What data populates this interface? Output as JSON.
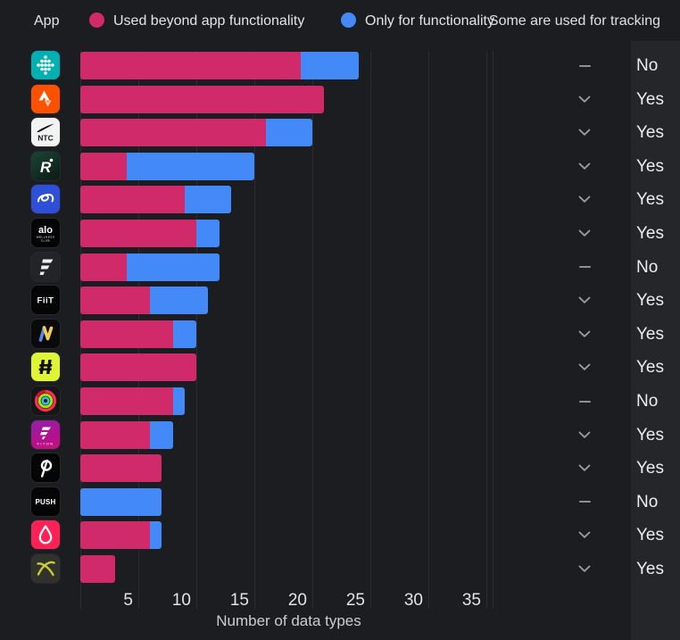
{
  "header": {
    "app_label": "App",
    "legend": [
      {
        "label": "Used beyond app functionality",
        "color": "#d02a6b"
      },
      {
        "label": "Only for functionality",
        "color": "#4489f8"
      }
    ],
    "tracking_label": "Some are used for tracking"
  },
  "chart_data": {
    "type": "bar",
    "orientation": "horizontal-stacked",
    "title": "",
    "xlabel": "Number of data types",
    "x_ticks": [
      5,
      10,
      15,
      20,
      25,
      30,
      35
    ],
    "xlim": [
      0,
      35.5
    ],
    "grid": "vertical",
    "series_names": [
      "Used beyond app functionality",
      "Only for functionality"
    ],
    "colors": {
      "used_beyond": "#d02a6b",
      "only_functionality": "#4489f8"
    },
    "rows": [
      {
        "icon": "fitbit",
        "icon_label": "",
        "icon_sublabel": "",
        "used_beyond": 19,
        "only_functionality": 5,
        "expand_icon": "dash",
        "tracking": "No"
      },
      {
        "icon": "strava",
        "icon_label": "",
        "icon_sublabel": "",
        "used_beyond": 21,
        "only_functionality": 0,
        "expand_icon": "chevron-down",
        "tracking": "Yes"
      },
      {
        "icon": "ntc",
        "icon_label": "NTC",
        "icon_sublabel": "",
        "used_beyond": 16,
        "only_functionality": 4,
        "expand_icon": "chevron-down",
        "tracking": "Yes"
      },
      {
        "icon": "runner-r",
        "icon_label": "R",
        "icon_sublabel": "",
        "used_beyond": 4,
        "only_functionality": 11,
        "expand_icon": "chevron-down",
        "tracking": "Yes"
      },
      {
        "icon": "blue-swirl",
        "icon_label": "",
        "icon_sublabel": "",
        "used_beyond": 9,
        "only_functionality": 4,
        "expand_icon": "chevron-down",
        "tracking": "Yes"
      },
      {
        "icon": "alo",
        "icon_label": "alo",
        "icon_sublabel": "WELLNESS CLUB",
        "used_beyond": 10,
        "only_functionality": 2,
        "expand_icon": "chevron-down",
        "tracking": "Yes"
      },
      {
        "icon": "angular-f",
        "icon_label": "",
        "icon_sublabel": "",
        "used_beyond": 4,
        "only_functionality": 8,
        "expand_icon": "dash",
        "tracking": "No"
      },
      {
        "icon": "fiit",
        "icon_label": "FiiT",
        "icon_sublabel": "",
        "used_beyond": 6,
        "only_functionality": 5,
        "expand_icon": "chevron-down",
        "tracking": "Yes"
      },
      {
        "icon": "zigzag-n",
        "icon_label": "",
        "icon_sublabel": "",
        "used_beyond": 8,
        "only_functionality": 2,
        "expand_icon": "chevron-down",
        "tracking": "Yes"
      },
      {
        "icon": "lime-h",
        "icon_label": "",
        "icon_sublabel": "",
        "used_beyond": 10,
        "only_functionality": 0,
        "expand_icon": "chevron-down",
        "tracking": "Yes"
      },
      {
        "icon": "activity-rings",
        "icon_label": "",
        "icon_sublabel": "",
        "used_beyond": 8,
        "only_functionality": 1,
        "expand_icon": "dash",
        "tracking": "No"
      },
      {
        "icon": "fiton",
        "icon_label": "FITON",
        "icon_sublabel": "",
        "used_beyond": 6,
        "only_functionality": 2,
        "expand_icon": "chevron-down",
        "tracking": "Yes"
      },
      {
        "icon": "peloton",
        "icon_label": "",
        "icon_sublabel": "",
        "used_beyond": 7,
        "only_functionality": 0,
        "expand_icon": "chevron-down",
        "tracking": "Yes"
      },
      {
        "icon": "push",
        "icon_label": "PUSH",
        "icon_sublabel": "",
        "used_beyond": 0,
        "only_functionality": 7,
        "expand_icon": "dash",
        "tracking": "No"
      },
      {
        "icon": "droplet",
        "icon_label": "",
        "icon_sublabel": "",
        "used_beyond": 6,
        "only_functionality": 1,
        "expand_icon": "chevron-down",
        "tracking": "Yes"
      },
      {
        "icon": "orbit-x",
        "icon_label": "",
        "icon_sublabel": "",
        "used_beyond": 3,
        "only_functionality": 0,
        "expand_icon": "chevron-down",
        "tracking": "Yes"
      }
    ]
  }
}
